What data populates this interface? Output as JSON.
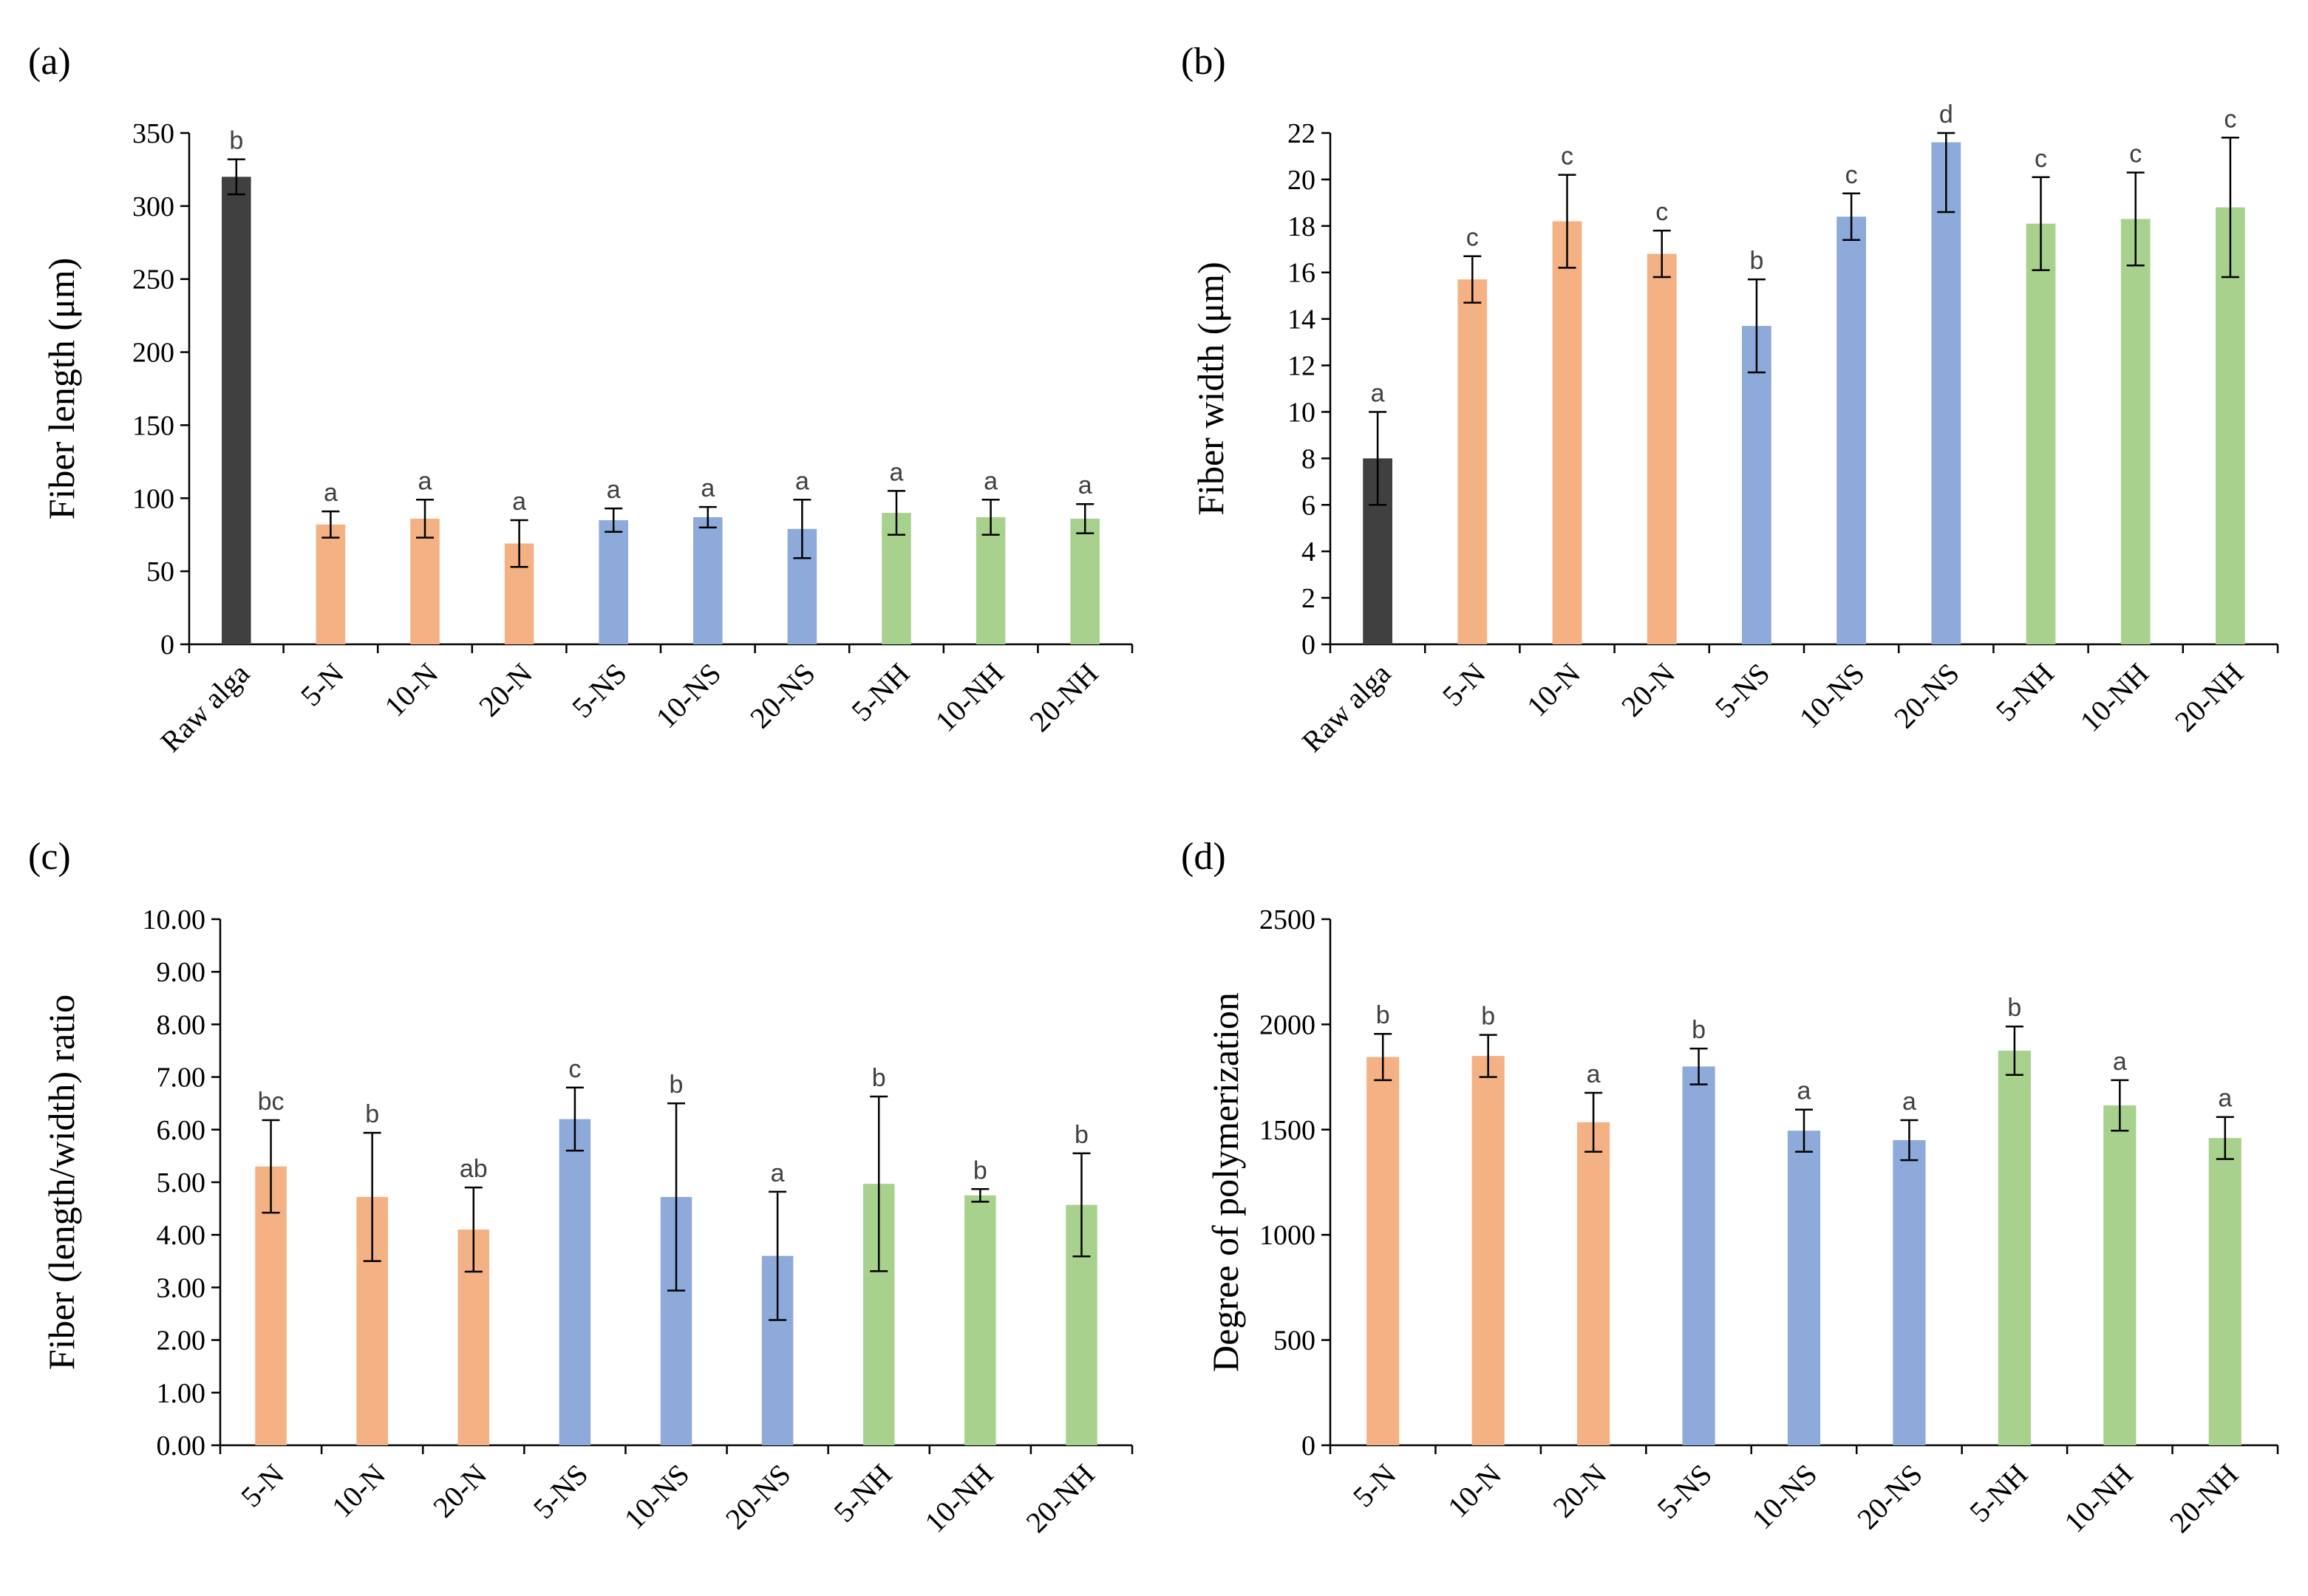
{
  "colors": {
    "raw": "#404040",
    "N": "#f4b183",
    "NS": "#8eaadb",
    "NH": "#a9d18e",
    "axis": "#000000",
    "error_bar": "#000000",
    "sig_label": "#404040"
  },
  "chart_data": [
    {
      "panel_label": "(a)",
      "type": "bar",
      "title": "",
      "ylabel": "Fiber length (μm)",
      "xlabel": "",
      "ylim": [
        0,
        350
      ],
      "yticks": [
        "0",
        "50",
        "100",
        "150",
        "200",
        "250",
        "300",
        "350"
      ],
      "yticks_values": [
        0,
        50,
        100,
        150,
        200,
        250,
        300,
        350
      ],
      "grid": false,
      "legend": "none",
      "categories": [
        "Raw alga",
        "5-N",
        "10-N",
        "20-N",
        "5-NS",
        "10-NS",
        "20-NS",
        "5-NH",
        "10-NH",
        "20-NH"
      ],
      "groups": [
        "raw",
        "N",
        "N",
        "N",
        "NS",
        "NS",
        "NS",
        "NH",
        "NH",
        "NH"
      ],
      "values": [
        320,
        82,
        86,
        69,
        85,
        87,
        79,
        90,
        87,
        86
      ],
      "errors": [
        12,
        9,
        13,
        16,
        8,
        7,
        20,
        15,
        12,
        10
      ],
      "significance": [
        "b",
        "a",
        "a",
        "a",
        "a",
        "a",
        "a",
        "a",
        "a",
        "a"
      ]
    },
    {
      "panel_label": "(b)",
      "type": "bar",
      "title": "",
      "ylabel": "Fiber width (μm)",
      "xlabel": "",
      "ylim": [
        0,
        22
      ],
      "yticks": [
        "0",
        "2",
        "4",
        "6",
        "8",
        "10",
        "12",
        "14",
        "16",
        "18",
        "20",
        "22"
      ],
      "yticks_values": [
        0,
        2,
        4,
        6,
        8,
        10,
        12,
        14,
        16,
        18,
        20,
        22
      ],
      "grid": false,
      "legend": "none",
      "categories": [
        "Raw alga",
        "5-N",
        "10-N",
        "20-N",
        "5-NS",
        "10-NS",
        "20-NS",
        "5-NH",
        "10-NH",
        "20-NH"
      ],
      "groups": [
        "raw",
        "N",
        "N",
        "N",
        "NS",
        "NS",
        "NS",
        "NH",
        "NH",
        "NH"
      ],
      "values": [
        8.0,
        15.7,
        18.2,
        16.8,
        13.7,
        18.4,
        21.6,
        18.1,
        18.3,
        18.8
      ],
      "errors": [
        2.0,
        1.0,
        2.0,
        1.0,
        2.0,
        1.0,
        3.0,
        2.0,
        2.0,
        3.0
      ],
      "significance": [
        "a",
        "c",
        "c",
        "c",
        "b",
        "c",
        "d",
        "c",
        "c",
        "c"
      ]
    },
    {
      "panel_label": "(c)",
      "type": "bar",
      "title": "",
      "ylabel": "Fiber (length/width)  ratio",
      "xlabel": "",
      "ylim": [
        0,
        10
      ],
      "yticks": [
        "0.00",
        "1.00",
        "2.00",
        "3.00",
        "4.00",
        "5.00",
        "6.00",
        "7.00",
        "8.00",
        "9.00",
        "10.00"
      ],
      "yticks_values": [
        0,
        1,
        2,
        3,
        4,
        5,
        6,
        7,
        8,
        9,
        10
      ],
      "grid": false,
      "legend": "none",
      "categories": [
        "5-N",
        "10-N",
        "20-N",
        "5-NS",
        "10-NS",
        "20-NS",
        "5-NH",
        "10-NH",
        "20-NH"
      ],
      "groups": [
        "N",
        "N",
        "N",
        "NS",
        "NS",
        "NS",
        "NH",
        "NH",
        "NH"
      ],
      "values": [
        5.3,
        4.72,
        4.1,
        6.2,
        4.72,
        3.6,
        4.97,
        4.75,
        4.57
      ],
      "errors": [
        0.88,
        1.22,
        0.8,
        0.6,
        1.78,
        1.22,
        1.66,
        0.12,
        0.98
      ],
      "significance": [
        "bc",
        "b",
        "ab",
        "c",
        "b",
        "a",
        "b",
        "b",
        "b"
      ]
    },
    {
      "panel_label": "(d)",
      "type": "bar",
      "title": "",
      "ylabel": "Degree of polymerization",
      "xlabel": "",
      "ylim": [
        0,
        2500
      ],
      "yticks": [
        "0",
        "500",
        "1000",
        "1500",
        "2000",
        "2500"
      ],
      "yticks_values": [
        0,
        500,
        1000,
        1500,
        2000,
        2500
      ],
      "grid": false,
      "legend": "none",
      "categories": [
        "5-N",
        "10-N",
        "20-N",
        "5-NS",
        "10-NS",
        "20-NS",
        "5-NH",
        "10-NH",
        "20-NH"
      ],
      "groups": [
        "N",
        "N",
        "N",
        "NS",
        "NS",
        "NS",
        "NH",
        "NH",
        "NH"
      ],
      "values": [
        1845,
        1850,
        1535,
        1800,
        1495,
        1450,
        1875,
        1615,
        1460
      ],
      "errors": [
        110,
        100,
        140,
        85,
        100,
        95,
        115,
        120,
        100
      ],
      "significance": [
        "b",
        "b",
        "a",
        "b",
        "a",
        "a",
        "b",
        "a",
        "a"
      ]
    }
  ]
}
